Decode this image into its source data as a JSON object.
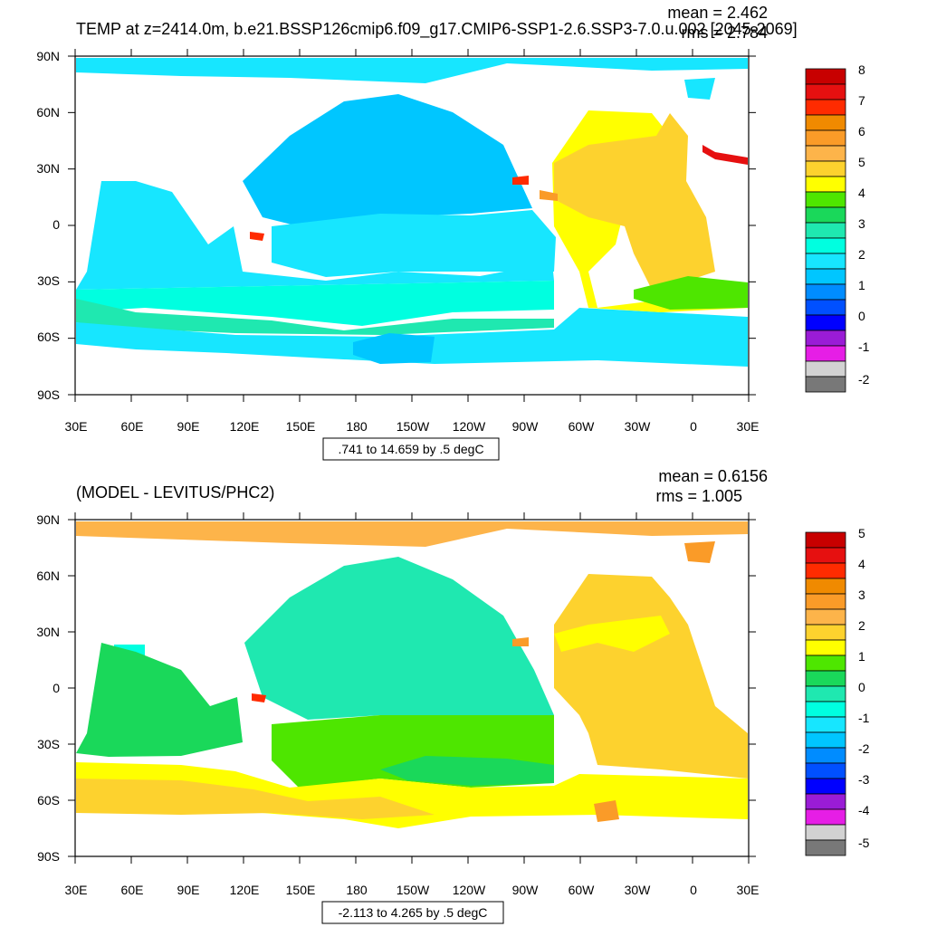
{
  "panels": [
    {
      "title": "TEMP at z=2414.0m, b.e21.BSSP126cmip6.f09_g17.CMIP6-SSP1-2.6.SSP3-7.0.u.002 [2045-2069]",
      "stats": {
        "mean": "mean = 2.462",
        "rms": "rms = 2.784"
      },
      "lat_ticks": [
        "90N",
        "60N",
        "30N",
        "0",
        "30S",
        "60S",
        "90S"
      ],
      "lon_ticks": [
        "30E",
        "60E",
        "90E",
        "120E",
        "150E",
        "180",
        "150W",
        "120W",
        "90W",
        "60W",
        "30W",
        "0",
        "30E"
      ],
      "range_label": ".741 to 14.659 by .5 degC",
      "colorbar": {
        "labels": [
          "8",
          "7",
          "6",
          "5",
          "4",
          "3",
          "2",
          "1",
          "0",
          "-1",
          "-2"
        ],
        "colors": [
          "#c80000",
          "#e61010",
          "#ff2b00",
          "#f08a00",
          "#fa9b28",
          "#fdb44a",
          "#fdd22e",
          "#ffff00",
          "#4ee600",
          "#1ad85a",
          "#1fe8b0",
          "#00ffe0",
          "#17e6ff",
          "#00c6ff",
          "#008cff",
          "#0050ff",
          "#0000ff",
          "#9a1cd6",
          "#e61ee6",
          "#d2d2d2",
          "#787878"
        ]
      }
    },
    {
      "title": "(MODEL - LEVITUS/PHC2)",
      "stats": {
        "mean": "mean = 0.6156",
        "rms": "rms = 1.005"
      },
      "lat_ticks": [
        "90N",
        "60N",
        "30N",
        "0",
        "30S",
        "60S",
        "90S"
      ],
      "lon_ticks": [
        "30E",
        "60E",
        "90E",
        "120E",
        "150E",
        "180",
        "150W",
        "120W",
        "90W",
        "60W",
        "30W",
        "0",
        "30E"
      ],
      "range_label": "-2.113 to 4.265 by .5 degC",
      "colorbar": {
        "labels": [
          "5",
          "4",
          "3",
          "2",
          "1",
          "0",
          "-1",
          "-2",
          "-3",
          "-4",
          "-5"
        ],
        "colors": [
          "#c80000",
          "#e61010",
          "#ff2b00",
          "#f08a00",
          "#fa9b28",
          "#fdb44a",
          "#fdd22e",
          "#ffff00",
          "#4ee600",
          "#1ad85a",
          "#1fe8b0",
          "#00ffe0",
          "#17e6ff",
          "#00c6ff",
          "#008cff",
          "#0050ff",
          "#0000ff",
          "#9a1cd6",
          "#e61ee6",
          "#d2d2d2",
          "#787878"
        ]
      }
    }
  ]
}
